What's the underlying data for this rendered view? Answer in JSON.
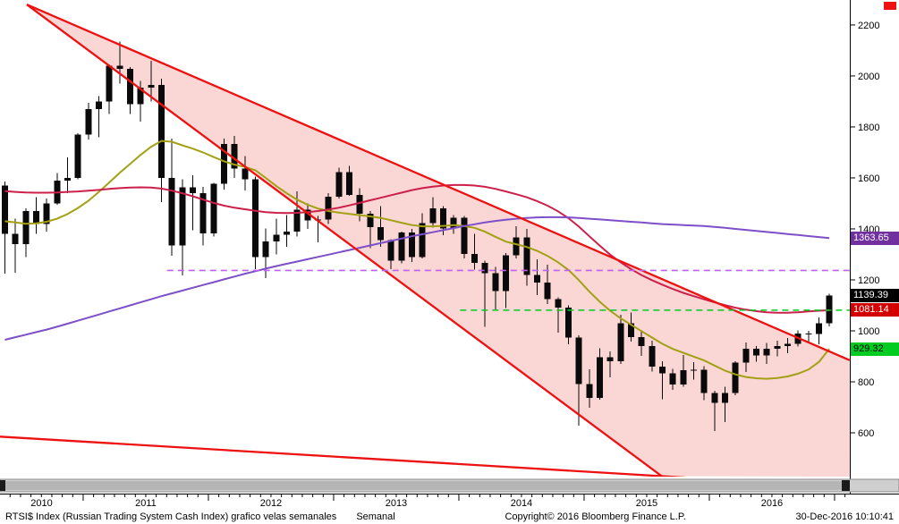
{
  "footer": {
    "left": "RTSI$ Index (Russian Trading System Cash Index) grafico velas semanales",
    "period": "Semanal",
    "center": "Copyright© 2016 Bloomberg Finance L.P.",
    "right": "30-Dec-2016 10:10:41"
  },
  "price_labels": {
    "purple": {
      "value": "1363.65"
    },
    "last": {
      "value": "1139.39"
    },
    "level": {
      "value": "1081.14"
    },
    "green": {
      "value": "929.32"
    }
  },
  "axis": {
    "y_ticks": [
      600,
      800,
      1000,
      1200,
      1400,
      1600,
      1800,
      2000,
      2200
    ],
    "x_years": [
      2010,
      2011,
      2012,
      2013,
      2014,
      2015,
      2016
    ]
  },
  "chart_data": {
    "type": "candlestick",
    "title": "RTSI$ Index (Russian Trading System Cash Index) grafico velas semanales",
    "period": "Semanal",
    "xlabel": "",
    "ylabel": "",
    "ylim": [
      428,
      2298
    ],
    "x_start": 2010.375,
    "x_step": 0.0833333,
    "last_price": 1139.39,
    "colors": {
      "candle": "#0a0a0a",
      "channel": "#ee1111",
      "channel_fill": "#fad7d4",
      "ma_fast": "#a3a014",
      "ma_mid": "#cc1f4a",
      "ma_slow": "#7d4fc9",
      "level_purple": "#c060f0",
      "level_green": "#00cc22"
    },
    "candles": [
      [
        1570,
        1585,
        1225,
        1380
      ],
      [
        1380,
        1440,
        1228,
        1340
      ],
      [
        1340,
        1480,
        1290,
        1470
      ],
      [
        1470,
        1525,
        1380,
        1420
      ],
      [
        1420,
        1520,
        1390,
        1500
      ],
      [
        1500,
        1620,
        1495,
        1590
      ],
      [
        1590,
        1680,
        1540,
        1600
      ],
      [
        1600,
        1775,
        1595,
        1770
      ],
      [
        1770,
        1895,
        1750,
        1870
      ],
      [
        1870,
        1920,
        1760,
        1900
      ],
      [
        1900,
        2045,
        1850,
        2040
      ],
      [
        2040,
        2134,
        1970,
        2027
      ],
      [
        2027,
        2035,
        1850,
        1890
      ],
      [
        1890,
        1980,
        1820,
        1955
      ],
      [
        1955,
        2060,
        1900,
        1965
      ],
      [
        1965,
        1990,
        1505,
        1600
      ],
      [
        1600,
        1755,
        1295,
        1335
      ],
      [
        1335,
        1595,
        1217,
        1563
      ],
      [
        1563,
        1610,
        1395,
        1540
      ],
      [
        1540,
        1565,
        1335,
        1382
      ],
      [
        1382,
        1580,
        1370,
        1577
      ],
      [
        1577,
        1755,
        1555,
        1734
      ],
      [
        1734,
        1765,
        1600,
        1637
      ],
      [
        1637,
        1685,
        1550,
        1594
      ],
      [
        1594,
        1605,
        1242,
        1290
      ],
      [
        1290,
        1402,
        1207,
        1350
      ],
      [
        1350,
        1440,
        1300,
        1377
      ],
      [
        1377,
        1455,
        1330,
        1390
      ],
      [
        1390,
        1548,
        1370,
        1476
      ],
      [
        1476,
        1500,
        1400,
        1433
      ],
      [
        1433,
        1450,
        1348,
        1436
      ],
      [
        1436,
        1540,
        1420,
        1527
      ],
      [
        1527,
        1640,
        1520,
        1622
      ],
      [
        1622,
        1648,
        1530,
        1534
      ],
      [
        1534,
        1560,
        1430,
        1460
      ],
      [
        1460,
        1470,
        1325,
        1407
      ],
      [
        1407,
        1490,
        1330,
        1356
      ],
      [
        1356,
        1360,
        1242,
        1275
      ],
      [
        1275,
        1390,
        1265,
        1386
      ],
      [
        1386,
        1400,
        1270,
        1290
      ],
      [
        1290,
        1462,
        1285,
        1422
      ],
      [
        1422,
        1525,
        1405,
        1481
      ],
      [
        1481,
        1490,
        1375,
        1402
      ],
      [
        1402,
        1455,
        1380,
        1443
      ],
      [
        1443,
        1450,
        1285,
        1301
      ],
      [
        1301,
        1380,
        1240,
        1267
      ],
      [
        1267,
        1275,
        1016,
        1226
      ],
      [
        1226,
        1250,
        1085,
        1156
      ],
      [
        1156,
        1305,
        1090,
        1296
      ],
      [
        1296,
        1410,
        1285,
        1366
      ],
      [
        1366,
        1400,
        1177,
        1219
      ],
      [
        1219,
        1280,
        1141,
        1190
      ],
      [
        1190,
        1260,
        1105,
        1124
      ],
      [
        1124,
        1132,
        993,
        1091
      ],
      [
        1091,
        1100,
        948,
        974
      ],
      [
        974,
        982,
        629,
        791
      ],
      [
        791,
        850,
        698,
        737
      ],
      [
        737,
        932,
        730,
        896
      ],
      [
        896,
        920,
        817,
        880
      ],
      [
        880,
        1064,
        870,
        1029
      ],
      [
        1029,
        1072,
        958,
        976
      ],
      [
        976,
        1000,
        901,
        940
      ],
      [
        940,
        962,
        840,
        859
      ],
      [
        859,
        880,
        732,
        833
      ],
      [
        833,
        851,
        769,
        790
      ],
      [
        790,
        905,
        780,
        846
      ],
      [
        846,
        878,
        808,
        848
      ],
      [
        848,
        862,
        729,
        757
      ],
      [
        757,
        765,
        607,
        717
      ],
      [
        717,
        780,
        642,
        756
      ],
      [
        756,
        881,
        748,
        876
      ],
      [
        876,
        955,
        838,
        930
      ],
      [
        930,
        941,
        879,
        904
      ],
      [
        904,
        952,
        870,
        930
      ],
      [
        930,
        962,
        900,
        940
      ],
      [
        940,
        972,
        912,
        950
      ],
      [
        950,
        1002,
        938,
        990
      ],
      [
        990,
        1000,
        958,
        988
      ],
      [
        988,
        1052,
        948,
        1029
      ],
      [
        1029,
        1145,
        1018,
        1139.39
      ]
    ],
    "series": [
      {
        "name": "moving-average-fast",
        "color_key": "ma_fast",
        "last": 929.32,
        "values": [
          1430,
          1425,
          1420,
          1422,
          1428,
          1440,
          1458,
          1482,
          1510,
          1545,
          1582,
          1620,
          1655,
          1690,
          1722,
          1745,
          1742,
          1728,
          1715,
          1700,
          1682,
          1665,
          1652,
          1643,
          1630,
          1600,
          1568,
          1540,
          1515,
          1495,
          1480,
          1470,
          1464,
          1459,
          1454,
          1449,
          1443,
          1434,
          1424,
          1415,
          1410,
          1410,
          1412,
          1415,
          1411,
          1404,
          1389,
          1369,
          1350,
          1340,
          1329,
          1314,
          1294,
          1269,
          1239,
          1199,
          1154,
          1114,
          1079,
          1049,
          1024,
          999,
          974,
          949,
          929,
          914,
          899,
          884,
          864,
          844,
          829,
          819,
          814,
          812,
          815,
          821,
          832,
          848,
          878,
          929.32
        ]
      },
      {
        "name": "moving-average-mid",
        "color_key": "ma_mid",
        "last": 1081.14,
        "values": [
          1548,
          1545,
          1543,
          1542,
          1542,
          1543,
          1545,
          1547,
          1550,
          1553,
          1557,
          1560,
          1562,
          1563,
          1562,
          1558,
          1550,
          1540,
          1528,
          1515,
          1502,
          1491,
          1483,
          1477,
          1471,
          1466,
          1463,
          1462,
          1463,
          1466,
          1470,
          1476,
          1483,
          1492,
          1502,
          1512,
          1522,
          1532,
          1542,
          1552,
          1560,
          1566,
          1570,
          1572,
          1572,
          1570,
          1565,
          1557,
          1547,
          1536,
          1524,
          1509,
          1491,
          1469,
          1442,
          1409,
          1371,
          1334,
          1299,
          1269,
          1242,
          1219,
          1199,
          1181,
          1164,
          1149,
          1136,
          1124,
          1112,
          1101,
          1091,
          1083,
          1077,
          1073,
          1071,
          1071,
          1073,
          1076,
          1079,
          1081.14
        ]
      },
      {
        "name": "moving-average-slow",
        "color_key": "ma_slow",
        "last": 1363.65,
        "values": [
          965,
          975,
          985,
          995,
          1005,
          1016,
          1028,
          1040,
          1052,
          1064,
          1076,
          1088,
          1100,
          1112,
          1124,
          1136,
          1147,
          1158,
          1169,
          1180,
          1191,
          1202,
          1213,
          1224,
          1234,
          1244,
          1254,
          1263,
          1272,
          1281,
          1290,
          1299,
          1308,
          1317,
          1326,
          1335,
          1344,
          1353,
          1362,
          1371,
          1379,
          1387,
          1395,
          1403,
          1411,
          1418,
          1425,
          1431,
          1436,
          1440,
          1443,
          1445,
          1446,
          1446,
          1445,
          1443,
          1440,
          1437,
          1434,
          1431,
          1428,
          1425,
          1422,
          1419,
          1417,
          1415,
          1413,
          1411,
          1408,
          1404,
          1400,
          1396,
          1392,
          1388,
          1384,
          1380,
          1376,
          1372,
          1368,
          1363.65
        ]
      }
    ],
    "levels": [
      {
        "name": "resistance-dashed-purple",
        "price": 1237,
        "from": 2011.67,
        "color_key": "level_purple"
      },
      {
        "name": "support-dashed-green",
        "price": 1081.14,
        "from": 2014.01,
        "color_key": "level_green"
      }
    ],
    "trendlines": [
      {
        "name": "channel-upper",
        "from": [
          2010.55,
          2280
        ],
        "to": [
          2017.12,
          885
        ]
      },
      {
        "name": "channel-steep",
        "from": [
          2010.55,
          2280
        ],
        "to": [
          2015.62,
          430
        ]
      },
      {
        "name": "channel-lower",
        "from": [
          2010.336,
          585
        ],
        "to": [
          2017.12,
          386
        ]
      }
    ]
  }
}
